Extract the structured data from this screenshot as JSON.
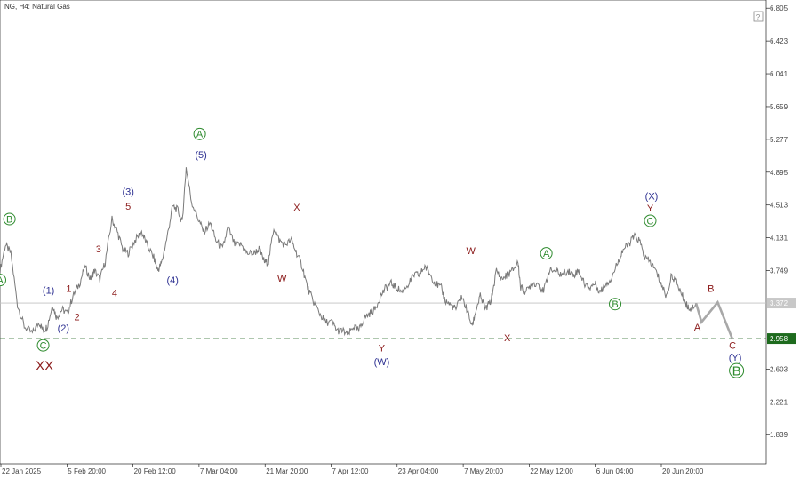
{
  "colors": {
    "price": "#7a7a7a",
    "projection": "#a8a8a8",
    "navy": "#2e3192",
    "maroon": "#8b1a1a",
    "green": "#2e8b2e",
    "current_badge": "#c8c8c8",
    "level_badge": "#1e6b1e"
  },
  "chart_data": {
    "type": "line",
    "symbol_label": "NG, H4:  Natural Gas",
    "ylim": [
      1.5,
      6.9
    ],
    "y_ticks": [
      "6.805",
      "6.423",
      "6.041",
      "5.659",
      "5.277",
      "4.895",
      "4.513",
      "4.131",
      "3.749",
      "2.603",
      "2.221",
      "1.839"
    ],
    "x_ticks": [
      "22 Jan 2025",
      "5 Feb 20:00",
      "20 Feb 12:00",
      "7 Mar 04:00",
      "21 Mar 20:00",
      "7 Apr 12:00",
      "23 Apr 04:00",
      "7 May 20:00",
      "22 May 12:00",
      "6 Jun 04:00",
      "20 Jun 20:00"
    ],
    "current_price": "3.372",
    "support_level": "2.958",
    "series": [
      {
        "values": [
          [
            0,
            3.75
          ],
          [
            0.4,
            4.05
          ],
          [
            0.8,
            3.95
          ],
          [
            1.3,
            3.35
          ],
          [
            1.8,
            3.1
          ],
          [
            2.4,
            3.02
          ],
          [
            2.9,
            3.15
          ],
          [
            3.2,
            3.05
          ],
          [
            3.5,
            3.1
          ],
          [
            3.9,
            3.35
          ],
          [
            4.2,
            3.2
          ],
          [
            4.6,
            3.3
          ],
          [
            5.0,
            3.25
          ],
          [
            5.4,
            3.45
          ],
          [
            5.9,
            3.6
          ],
          [
            6.3,
            3.8
          ],
          [
            6.7,
            3.65
          ],
          [
            7.0,
            3.75
          ],
          [
            7.4,
            3.65
          ],
          [
            7.8,
            3.85
          ],
          [
            8.3,
            4.35
          ],
          [
            8.7,
            4.2
          ],
          [
            9.1,
            4.0
          ],
          [
            9.5,
            3.95
          ],
          [
            10.0,
            4.1
          ],
          [
            10.5,
            4.2
          ],
          [
            10.9,
            4.05
          ],
          [
            11.4,
            3.9
          ],
          [
            11.7,
            3.75
          ],
          [
            12.0,
            3.85
          ],
          [
            12.4,
            4.15
          ],
          [
            12.8,
            4.5
          ],
          [
            13.2,
            4.45
          ],
          [
            13.5,
            4.3
          ],
          [
            13.8,
            4.95
          ],
          [
            14.2,
            4.55
          ],
          [
            14.7,
            4.35
          ],
          [
            15.1,
            4.2
          ],
          [
            15.6,
            4.3
          ],
          [
            16.0,
            4.1
          ],
          [
            16.5,
            4.0
          ],
          [
            16.9,
            4.25
          ],
          [
            17.4,
            4.05
          ],
          [
            17.9,
            4.05
          ],
          [
            18.3,
            3.95
          ],
          [
            18.8,
            3.95
          ],
          [
            19.2,
            4.0
          ],
          [
            19.6,
            3.85
          ],
          [
            19.9,
            3.85
          ],
          [
            20.3,
            4.25
          ],
          [
            20.7,
            4.1
          ],
          [
            21.1,
            4.05
          ],
          [
            21.6,
            4.1
          ],
          [
            22.0,
            3.95
          ],
          [
            22.4,
            3.8
          ],
          [
            22.8,
            3.55
          ],
          [
            23.2,
            3.4
          ],
          [
            23.7,
            3.25
          ],
          [
            24.1,
            3.15
          ],
          [
            24.6,
            3.15
          ],
          [
            25.0,
            3.05
          ],
          [
            25.4,
            3.05
          ],
          [
            25.8,
            3.0
          ],
          [
            26.2,
            3.1
          ],
          [
            26.6,
            3.05
          ],
          [
            27.0,
            3.2
          ],
          [
            27.4,
            3.25
          ],
          [
            27.8,
            3.3
          ],
          [
            28.2,
            3.45
          ],
          [
            28.6,
            3.55
          ],
          [
            29.0,
            3.6
          ],
          [
            29.4,
            3.55
          ],
          [
            29.8,
            3.5
          ],
          [
            30.3,
            3.6
          ],
          [
            30.7,
            3.7
          ],
          [
            31.1,
            3.7
          ],
          [
            31.5,
            3.8
          ],
          [
            31.9,
            3.7
          ],
          [
            32.3,
            3.6
          ],
          [
            32.7,
            3.55
          ],
          [
            33.0,
            3.4
          ],
          [
            33.4,
            3.35
          ],
          [
            33.8,
            3.3
          ],
          [
            34.2,
            3.45
          ],
          [
            34.6,
            3.3
          ],
          [
            35.0,
            3.1
          ],
          [
            35.3,
            3.3
          ],
          [
            35.6,
            3.45
          ],
          [
            36.0,
            3.3
          ],
          [
            36.4,
            3.4
          ],
          [
            36.8,
            3.75
          ],
          [
            37.2,
            3.65
          ],
          [
            37.6,
            3.7
          ],
          [
            38.0,
            3.75
          ],
          [
            38.4,
            3.85
          ],
          [
            38.6,
            3.55
          ],
          [
            39.0,
            3.5
          ],
          [
            39.4,
            3.6
          ],
          [
            39.9,
            3.6
          ],
          [
            40.3,
            3.5
          ],
          [
            40.7,
            3.75
          ],
          [
            41.2,
            3.75
          ],
          [
            41.6,
            3.7
          ],
          [
            42.1,
            3.75
          ],
          [
            42.5,
            3.7
          ],
          [
            42.9,
            3.75
          ],
          [
            43.3,
            3.6
          ],
          [
            43.7,
            3.55
          ],
          [
            44.1,
            3.6
          ],
          [
            44.5,
            3.5
          ],
          [
            44.9,
            3.6
          ],
          [
            45.3,
            3.65
          ],
          [
            45.8,
            3.85
          ],
          [
            46.2,
            4.0
          ],
          [
            46.6,
            4.05
          ],
          [
            47.0,
            4.15
          ],
          [
            47.4,
            4.1
          ],
          [
            47.8,
            3.9
          ],
          [
            48.2,
            3.85
          ],
          [
            48.6,
            3.75
          ],
          [
            49.0,
            3.6
          ],
          [
            49.4,
            3.45
          ],
          [
            49.8,
            3.7
          ],
          [
            50.2,
            3.6
          ],
          [
            50.6,
            3.45
          ],
          [
            50.9,
            3.35
          ],
          [
            51.2,
            3.3
          ],
          [
            51.6,
            3.37
          ]
        ]
      },
      {
        "values": [
          [
            51.6,
            3.37
          ],
          [
            52.0,
            3.15
          ],
          [
            53.2,
            3.38
          ],
          [
            54.3,
            2.95
          ]
        ]
      }
    ],
    "wave_labels": [
      {
        "text": "A",
        "x": 0,
        "y": 3.6,
        "color": "green",
        "circle": true
      },
      {
        "text": "B",
        "x": 0.7,
        "y": 4.31,
        "color": "green",
        "circle": true
      },
      {
        "text": "(1)",
        "x": 3.6,
        "y": 3.48,
        "color": "navy"
      },
      {
        "text": "1",
        "x": 5.1,
        "y": 3.5,
        "color": "maroon"
      },
      {
        "text": "C",
        "x": 3.2,
        "y": 2.84,
        "color": "green",
        "circle": true
      },
      {
        "text": "XX",
        "x": 3.3,
        "y": 2.59,
        "color": "maroon",
        "big": true
      },
      {
        "text": "(2)",
        "x": 4.7,
        "y": 3.04,
        "color": "navy"
      },
      {
        "text": "2",
        "x": 5.7,
        "y": 3.17,
        "color": "maroon"
      },
      {
        "text": "3",
        "x": 7.3,
        "y": 3.96,
        "color": "maroon"
      },
      {
        "text": "4",
        "x": 8.5,
        "y": 3.45,
        "color": "maroon"
      },
      {
        "text": "(3)",
        "x": 9.5,
        "y": 4.63,
        "color": "navy"
      },
      {
        "text": "5",
        "x": 9.5,
        "y": 4.46,
        "color": "maroon"
      },
      {
        "text": "(4)",
        "x": 12.8,
        "y": 3.6,
        "color": "navy"
      },
      {
        "text": "A",
        "x": 14.8,
        "y": 5.3,
        "color": "green",
        "circle": true
      },
      {
        "text": "(5)",
        "x": 14.9,
        "y": 5.06,
        "color": "navy"
      },
      {
        "text": "X",
        "x": 22.0,
        "y": 4.45,
        "color": "maroon"
      },
      {
        "text": "W",
        "x": 20.9,
        "y": 3.62,
        "color": "maroon"
      },
      {
        "text": "Y",
        "x": 28.3,
        "y": 2.81,
        "color": "maroon"
      },
      {
        "text": "(W)",
        "x": 28.3,
        "y": 2.65,
        "color": "navy"
      },
      {
        "text": "W",
        "x": 34.9,
        "y": 3.94,
        "color": "maroon"
      },
      {
        "text": "X",
        "x": 37.6,
        "y": 2.93,
        "color": "maroon"
      },
      {
        "text": "A",
        "x": 40.5,
        "y": 3.91,
        "color": "green",
        "circle": true
      },
      {
        "text": "B",
        "x": 45.6,
        "y": 3.32,
        "color": "green",
        "circle": true
      },
      {
        "text": "(X)",
        "x": 48.3,
        "y": 4.58,
        "color": "navy"
      },
      {
        "text": "Y",
        "x": 48.2,
        "y": 4.44,
        "color": "maroon"
      },
      {
        "text": "C",
        "x": 48.2,
        "y": 4.29,
        "color": "green",
        "circle": true
      },
      {
        "text": "B",
        "x": 52.7,
        "y": 3.5,
        "color": "maroon"
      },
      {
        "text": "A",
        "x": 51.7,
        "y": 3.05,
        "color": "maroon"
      },
      {
        "text": "C",
        "x": 54.3,
        "y": 2.84,
        "color": "maroon"
      },
      {
        "text": "(Y)",
        "x": 54.5,
        "y": 2.7,
        "color": "navy"
      },
      {
        "text": "B",
        "x": 54.6,
        "y": 2.53,
        "color": "green",
        "circle": true,
        "big": true
      }
    ]
  }
}
